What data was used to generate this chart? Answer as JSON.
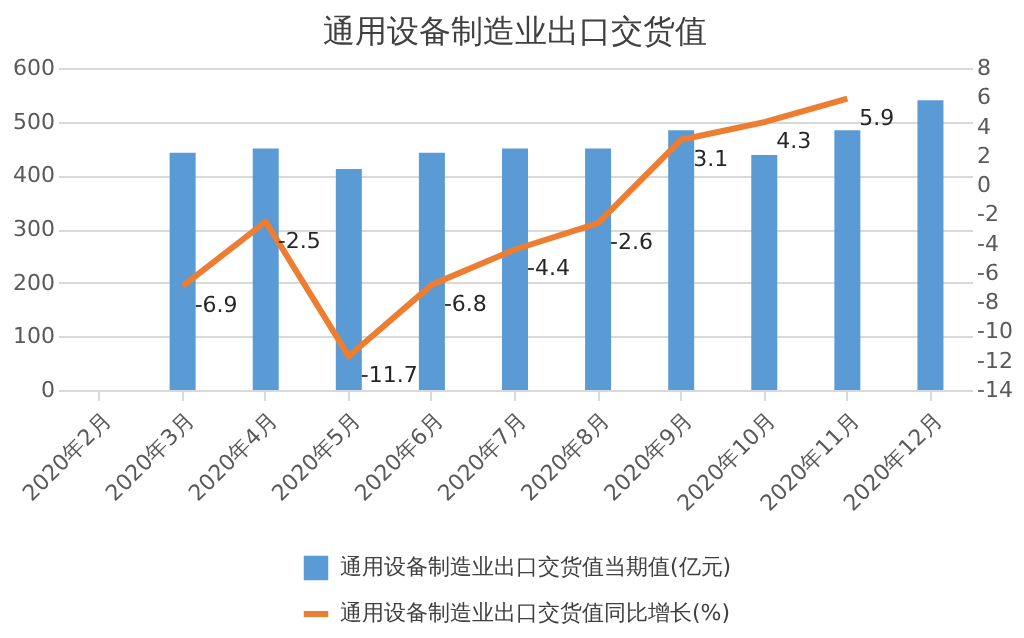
{
  "chart_data": {
    "type": "bar",
    "title": "通用设备制造业出口交货值",
    "categories": [
      "2020年2月",
      "2020年3月",
      "2020年4月",
      "2020年5月",
      "2020年6月",
      "2020年7月",
      "2020年8月",
      "2020年9月",
      "2020年10月",
      "2020年11月",
      "2020年12月"
    ],
    "series": [
      {
        "name": "通用设备制造业出口交货值当期值(亿元)",
        "color": "#5b9bd5",
        "values": [
          null,
          442,
          450,
          412,
          442,
          450,
          450,
          484,
          438,
          484,
          540
        ]
      },
      {
        "name": "通用设备制造业出口交货值同比增长(%)",
        "type": "line",
        "axis": "y2",
        "color": "#ed7d31",
        "values": [
          null,
          -6.9,
          -2.5,
          -11.7,
          -6.8,
          -4.4,
          -2.6,
          3.1,
          4.3,
          5.9,
          null
        ],
        "value_labels": [
          null,
          "-6.9",
          "-2.5",
          "-11.7",
          "-6.8",
          "-4.4",
          "-2.6",
          "3.1",
          "4.3",
          "5.9",
          null
        ]
      }
    ],
    "ylim": [
      0,
      600
    ],
    "yticks": [
      0,
      100,
      200,
      300,
      400,
      500,
      600
    ],
    "y2lim": [
      -14,
      8
    ],
    "y2ticks": [
      -14,
      -12,
      -10,
      -8,
      -6,
      -4,
      -2,
      0,
      2,
      4,
      6,
      8
    ],
    "grid": "y",
    "legend": "bottom"
  }
}
